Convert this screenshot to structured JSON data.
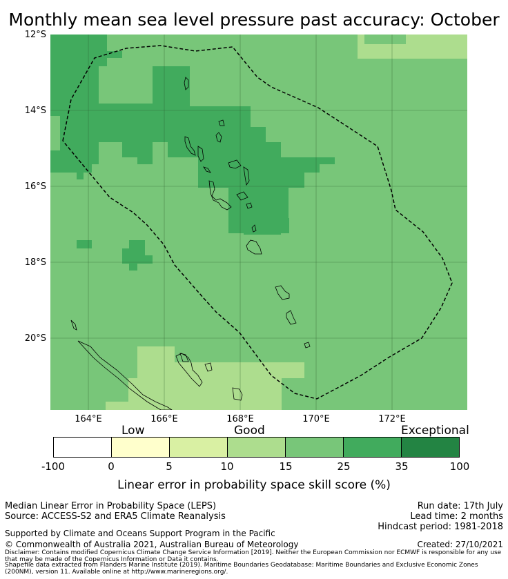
{
  "title": "Monthly mean sea level pressure past accuracy: October",
  "lat_labels": [
    "12°S",
    "14°S",
    "16°S",
    "18°S",
    "20°S"
  ],
  "lon_labels": [
    "164°E",
    "166°E",
    "168°E",
    "170°E",
    "172°E"
  ],
  "colorbar": {
    "categories": [
      "Low",
      "Good",
      "Exceptional"
    ],
    "ticks": [
      "-100",
      "0",
      "5",
      "10",
      "15",
      "25",
      "35",
      "100"
    ],
    "colors": [
      "#ffffff",
      "#ffffcc",
      "#d9f0a3",
      "#addd8e",
      "#78c679",
      "#41ab5d",
      "#238443"
    ],
    "label": "Linear error in probability space skill score (%)"
  },
  "map": {
    "colors": {
      "light": "#addd8e",
      "mid": "#78c679",
      "dark": "#41ab5d"
    },
    "boundary": "dashed"
  },
  "info": {
    "method": "Median Linear Error in Probability Space (LEPS)",
    "source": "Source: ACCESS-S2 and ERA5 Climate Reanalysis",
    "run_date": "Run date: 17th July",
    "lead_time": "Lead time: 2 months",
    "hindcast": "Hindcast period: 1981-2018",
    "support": "Supported by Climate and Oceans Support Program in the Pacific",
    "copyright": "© Commonwealth of Australia 2021, Australian Bureau of Meteorology",
    "created": "Created: 27/10/2021",
    "disclaimer": "Disclaimer: Contains modified Copernicus Climate Change Service Information [2019]. Neither the European Commission nor ECMWF is responsible for any use that may be made of the Copernicus Information or Data it contains.",
    "shapefile": "Shapefile data extracted from Flanders Marine Institute (2019). Maritime Boundaries Geodatabase: Maritime Boundaries and Exclusive Economic Zones (200NM), version 11. Available online at http://www.marineregions.org/."
  }
}
